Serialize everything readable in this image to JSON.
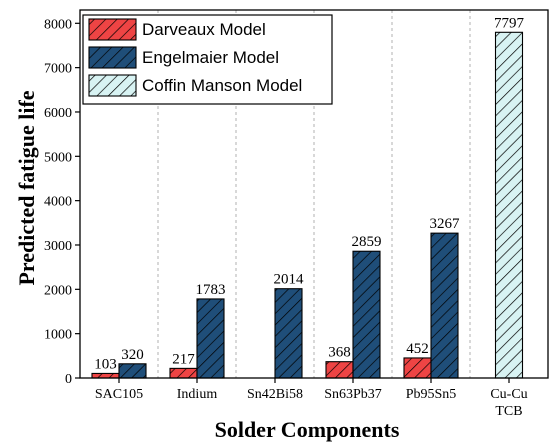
{
  "chart_data": {
    "type": "bar",
    "xlabel": "Solder Components",
    "ylabel": "Predicted fatigue life",
    "ylim": [
      0,
      8300
    ],
    "yticks": [
      0,
      1000,
      2000,
      3000,
      4000,
      5000,
      6000,
      7000,
      8000
    ],
    "categories": [
      [
        "SAC105"
      ],
      [
        "Indium"
      ],
      [
        "Sn42Bi58"
      ],
      [
        "Sn63Pb37"
      ],
      [
        "Pb95Sn5"
      ],
      [
        "Cu-Cu",
        "TCB"
      ]
    ],
    "grid": "vertical dashed separators between categories",
    "legend_position": "top-left",
    "series": [
      {
        "name": "Darveaux Model",
        "color": "#ee4444",
        "pattern": "diagonal-hatch",
        "values": [
          103,
          217,
          null,
          368,
          452,
          null
        ]
      },
      {
        "name": "Engelmaier Model",
        "color": "#1f4e79",
        "pattern": "diagonal-hatch",
        "values": [
          320,
          1783,
          2014,
          2859,
          3267,
          null
        ]
      },
      {
        "name": "Coffin Manson Model",
        "color": "#d8f3f3",
        "pattern": "diagonal-hatch",
        "values": [
          null,
          null,
          null,
          null,
          null,
          7797
        ]
      }
    ]
  }
}
